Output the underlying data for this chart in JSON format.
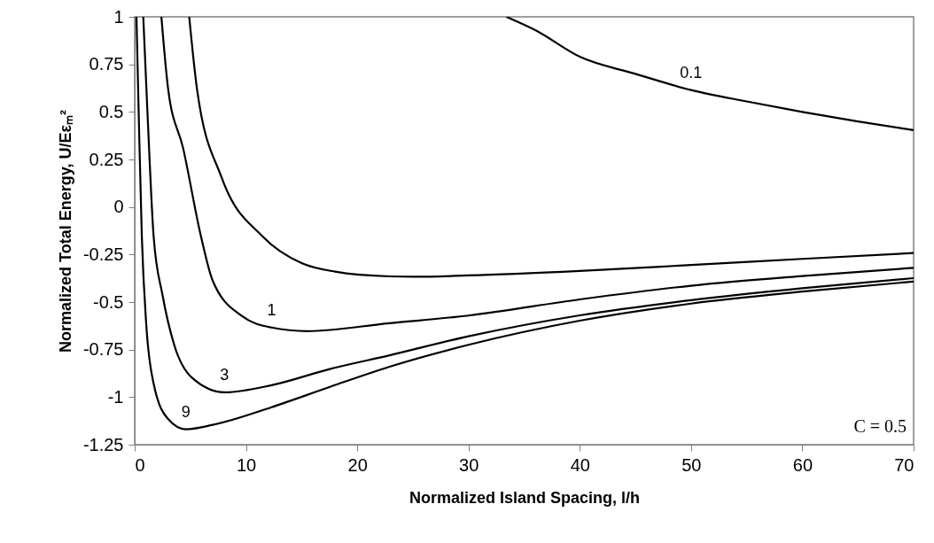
{
  "chart_data": {
    "type": "line",
    "xlabel": "Normalized Island Spacing, l/h",
    "ylabel": "Normalized Total Energy, U/Eεₘ²",
    "xlim": [
      0,
      70
    ],
    "ylim": [
      -1.25,
      1
    ],
    "xticks": [
      0,
      10,
      20,
      30,
      40,
      50,
      60,
      70
    ],
    "yticks": [
      -1.25,
      -1,
      -0.75,
      -0.5,
      -0.25,
      0,
      0.25,
      0.5,
      0.75,
      1
    ],
    "grid": false,
    "legend": false,
    "marker": "none",
    "line_style": "solid",
    "series": [
      {
        "color": "#000000",
        "x": [
          33.4,
          36,
          40,
          45,
          50,
          55,
          60,
          65,
          70
        ],
        "values": [
          1,
          0.93,
          0.79,
          0.7,
          0.615,
          0.555,
          0.5,
          0.45,
          0.404
        ]
      },
      {
        "color": "#000000",
        "x": [
          4.9,
          5.6,
          7.8,
          11.5,
          15,
          18,
          22.9,
          25,
          30,
          40,
          50,
          60,
          70
        ],
        "values": [
          1,
          0.62,
          0.157,
          -0.155,
          -0.295,
          -0.34,
          -0.365,
          -0.367,
          -0.36,
          -0.336,
          -0.305,
          -0.273,
          -0.242
        ]
      },
      {
        "color": "#000000",
        "x": [
          2.4,
          3,
          4.35,
          5.95,
          7,
          9.6,
          12.3,
          15.5,
          22.9,
          30,
          40,
          50,
          60,
          70
        ],
        "values": [
          1,
          0.623,
          0.31,
          -0.153,
          -0.386,
          -0.572,
          -0.634,
          -0.653,
          -0.611,
          -0.571,
          -0.486,
          -0.414,
          -0.363,
          -0.32
        ]
      },
      {
        "color": "#000000",
        "x": [
          0.77,
          1.17,
          1.7,
          2.5,
          3.56,
          5.15,
          8.07,
          12.3,
          17.6,
          22.9,
          30,
          40,
          50,
          60,
          70
        ],
        "values": [
          1,
          0.468,
          -0.153,
          -0.463,
          -0.727,
          -0.898,
          -0.975,
          -0.937,
          -0.851,
          -0.78,
          -0.68,
          -0.57,
          -0.49,
          -0.427,
          -0.374
        ]
      },
      {
        "color": "#000000",
        "x": [
          0.16,
          0.37,
          0.64,
          1.04,
          1.7,
          3,
          4.6,
          7,
          12.3,
          17.6,
          22.9,
          30,
          40,
          50,
          60,
          70
        ],
        "values": [
          1,
          0.468,
          -0.153,
          -0.619,
          -0.929,
          -1.115,
          -1.169,
          -1.146,
          -1.053,
          -0.945,
          -0.84,
          -0.725,
          -0.598,
          -0.508,
          -0.445,
          -0.392
        ]
      }
    ],
    "annotations": [
      {
        "text": "0.1",
        "x": 50,
        "y": 0.615
      },
      {
        "text": "1",
        "x": 12.3,
        "y": -0.634
      },
      {
        "text": "3",
        "x": 8.07,
        "y": -0.975
      },
      {
        "text": "9",
        "x": 4.6,
        "y": -1.169
      },
      "C = 0.5"
    ]
  }
}
